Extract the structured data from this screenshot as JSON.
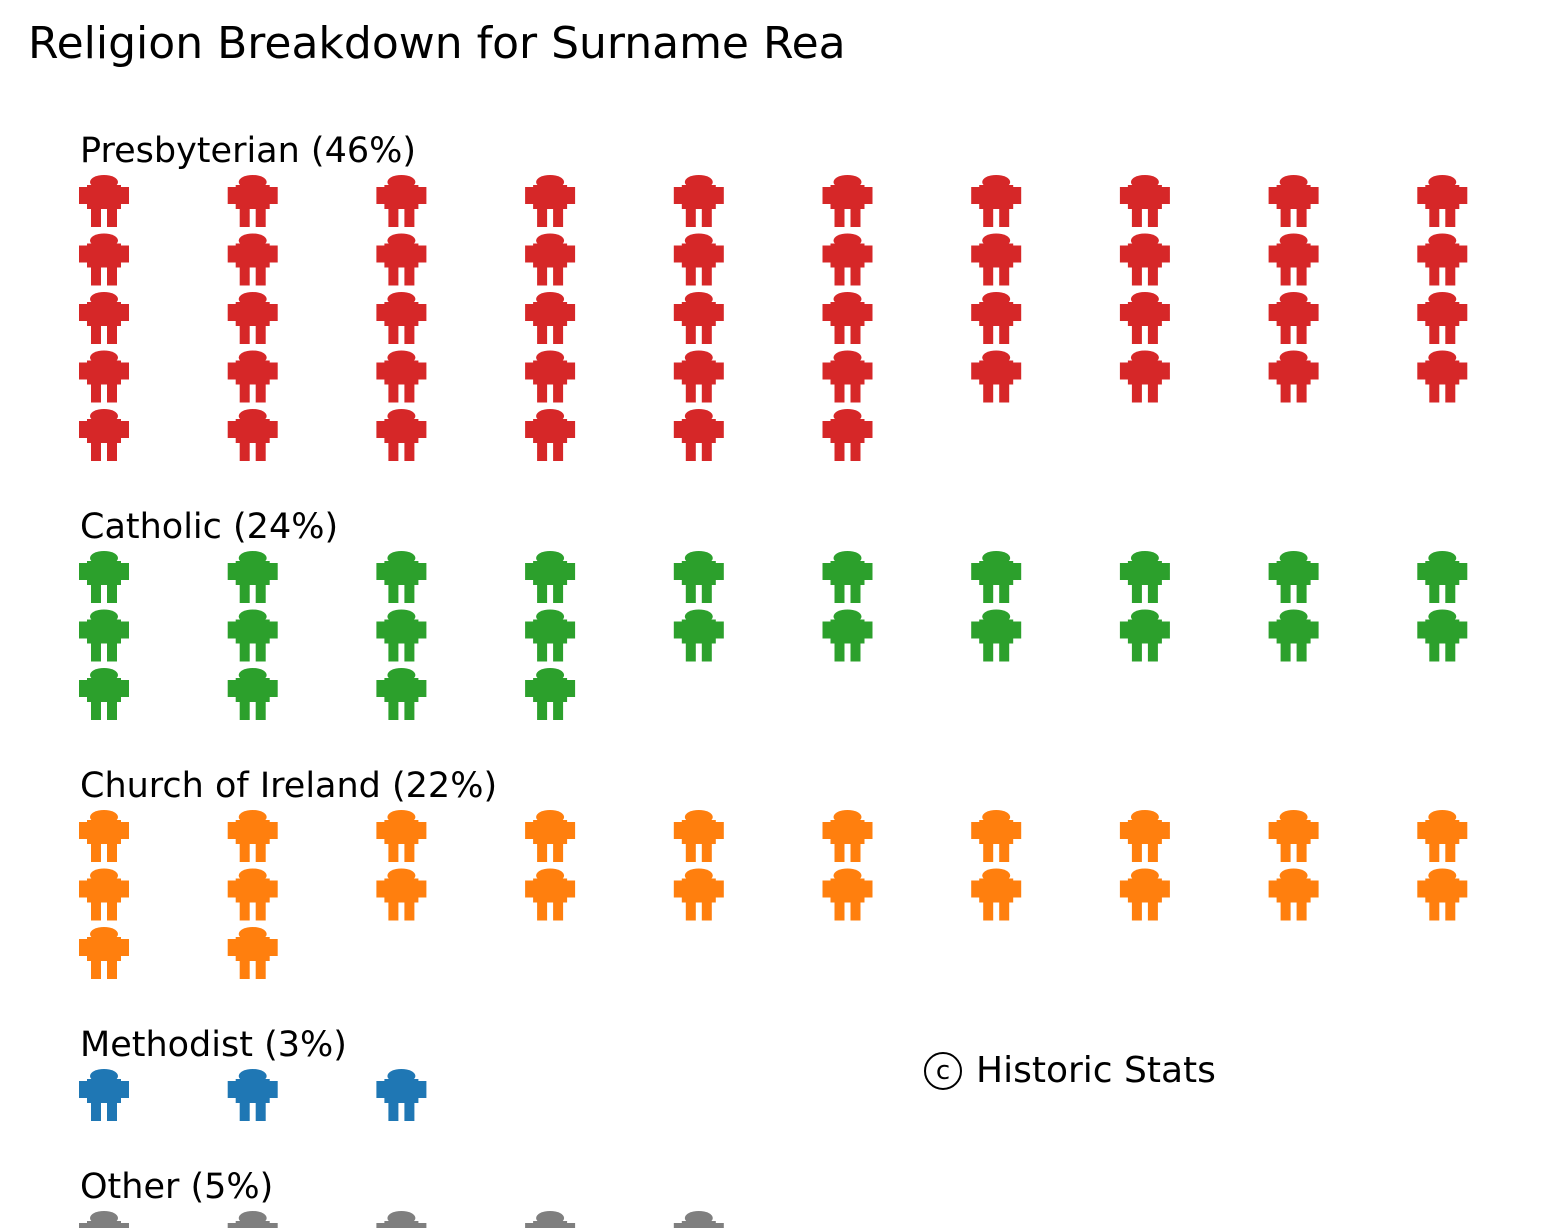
{
  "chart_data": {
    "type": "pictogram",
    "title": "Religion Breakdown for Surname Rea",
    "icon": "person-icon",
    "icons_per_row": 10,
    "series": [
      {
        "label": "Presbyterian (46%)",
        "name": "Presbyterian",
        "percent": 46,
        "count": 46,
        "color": "#d62728"
      },
      {
        "label": "Catholic (24%)",
        "name": "Catholic",
        "percent": 24,
        "count": 24,
        "color": "#2ca02c"
      },
      {
        "label": "Church of Ireland (22%)",
        "name": "Church of Ireland",
        "percent": 22,
        "count": 22,
        "color": "#ff7f0e"
      },
      {
        "label": "Methodist (3%)",
        "name": "Methodist",
        "percent": 3,
        "count": 3,
        "color": "#1f77b4"
      },
      {
        "label": "Other (5%)",
        "name": "Other",
        "percent": 5,
        "count": 5,
        "color": "#7f7f7f"
      }
    ]
  },
  "credit": {
    "icon": "copyright-icon",
    "symbol": "c",
    "text": "Historic Stats"
  }
}
